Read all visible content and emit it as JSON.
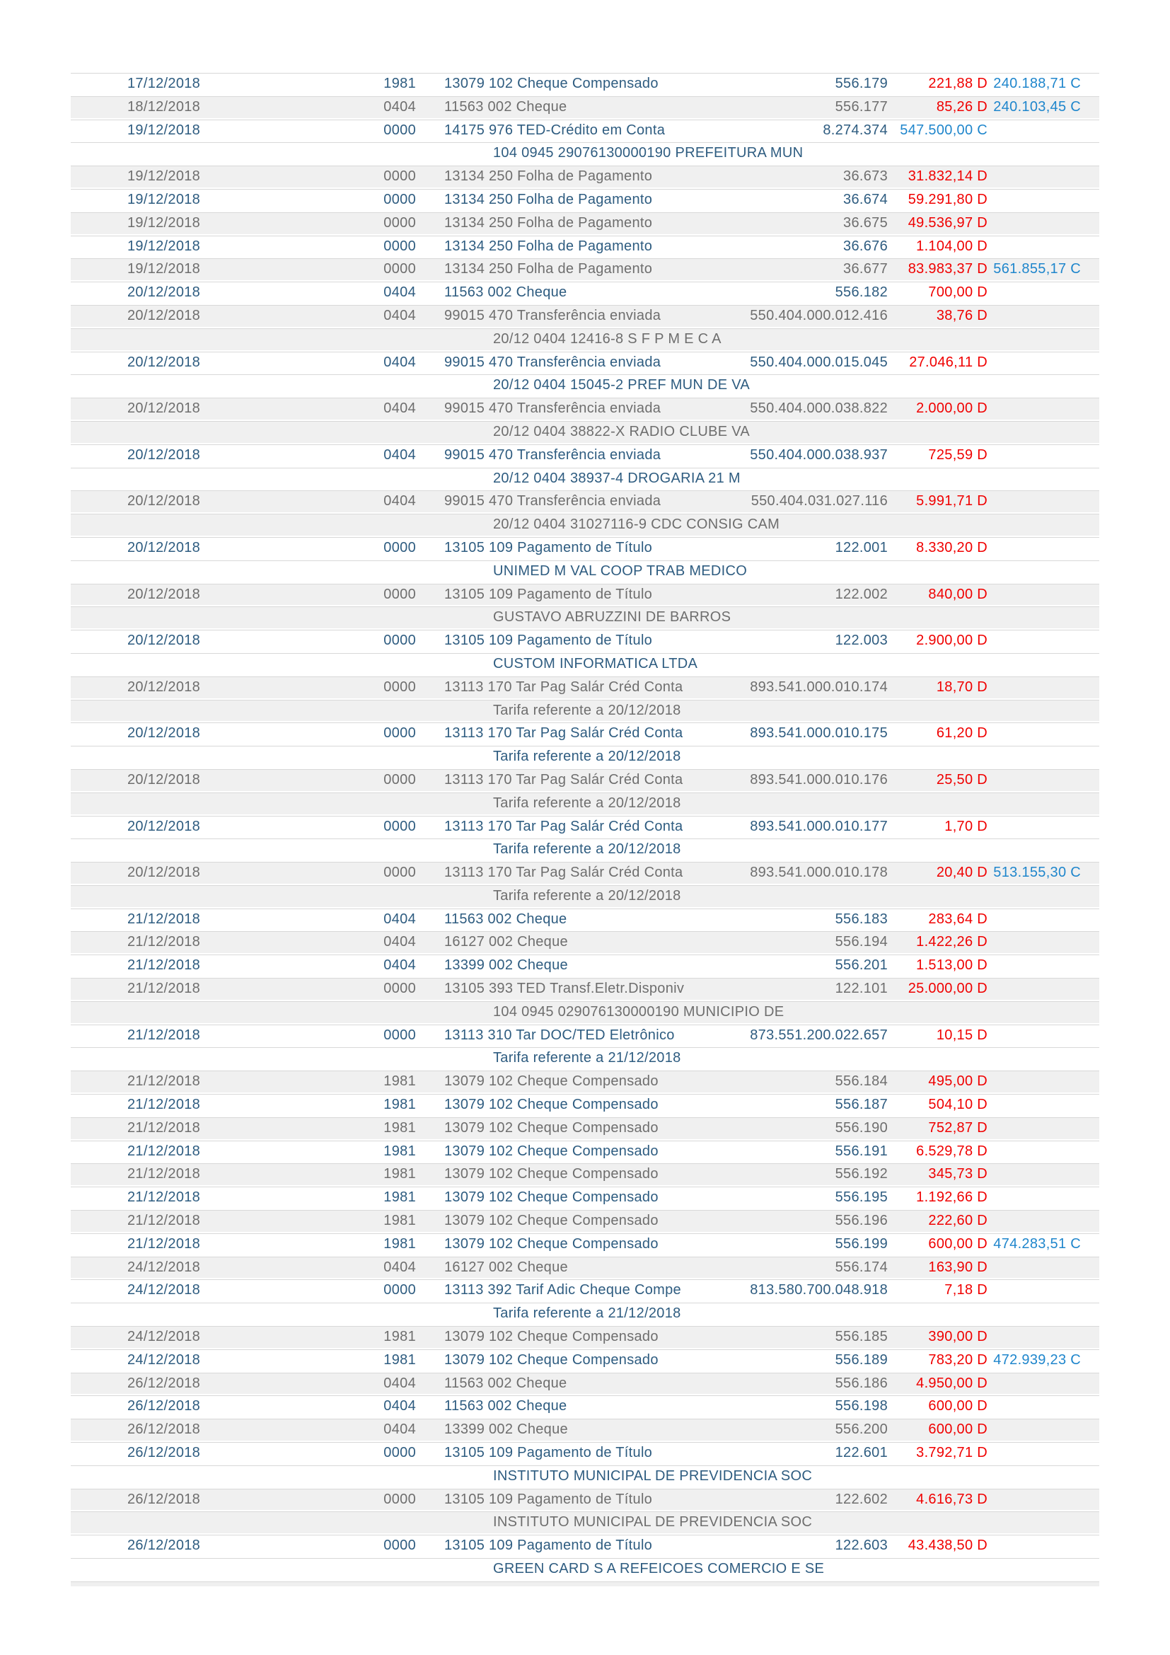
{
  "theme": {
    "navy_text_color": "#2e5c80",
    "gray_text_color": "#6e6e6e",
    "stripe_background_color": "#f0f0f0",
    "hairline_color": "#d8d8d8",
    "debit_color": "#f00000",
    "credit_color": "#1f86cc"
  },
  "statement": {
    "columns": [
      "date",
      "agency",
      "description",
      "document",
      "value",
      "balance"
    ],
    "debit_suffix": "D",
    "credit_suffix": "C",
    "transactions": [
      {
        "date": "17/12/2018",
        "agency": "1981",
        "desc": "13079 102 Cheque Compensado",
        "doc": "556.179",
        "value": "221,88 D",
        "kind": "D",
        "balance": "240.188,71 C"
      },
      {
        "date": "18/12/2018",
        "agency": "0404",
        "desc": "11563 002 Cheque",
        "doc": "556.177",
        "value": "85,26 D",
        "kind": "D",
        "balance": "240.103,45 C"
      },
      {
        "date": "19/12/2018",
        "agency": "0000",
        "desc": "14175 976 TED-Crédito em Conta",
        "doc": "8.274.374",
        "value": "547.500,00 C",
        "kind": "C",
        "sub": "104 0945 29076130000190 PREFEITURA MUN"
      },
      {
        "date": "19/12/2018",
        "agency": "0000",
        "desc": "13134 250 Folha de Pagamento",
        "doc": "36.673",
        "value": "31.832,14 D",
        "kind": "D"
      },
      {
        "date": "19/12/2018",
        "agency": "0000",
        "desc": "13134 250 Folha de Pagamento",
        "doc": "36.674",
        "value": "59.291,80 D",
        "kind": "D"
      },
      {
        "date": "19/12/2018",
        "agency": "0000",
        "desc": "13134 250 Folha de Pagamento",
        "doc": "36.675",
        "value": "49.536,97 D",
        "kind": "D"
      },
      {
        "date": "19/12/2018",
        "agency": "0000",
        "desc": "13134 250 Folha de Pagamento",
        "doc": "36.676",
        "value": "1.104,00 D",
        "kind": "D"
      },
      {
        "date": "19/12/2018",
        "agency": "0000",
        "desc": "13134 250 Folha de Pagamento",
        "doc": "36.677",
        "value": "83.983,37 D",
        "kind": "D",
        "balance": "561.855,17 C"
      },
      {
        "date": "20/12/2018",
        "agency": "0404",
        "desc": "11563 002 Cheque",
        "doc": "556.182",
        "value": "700,00 D",
        "kind": "D"
      },
      {
        "date": "20/12/2018",
        "agency": "0404",
        "desc": "99015 470 Transferência enviada",
        "doc": "550.404.000.012.416",
        "value": "38,76 D",
        "kind": "D",
        "sub": "20/12 0404 12416-8 S F P M E C A"
      },
      {
        "date": "20/12/2018",
        "agency": "0404",
        "desc": "99015 470 Transferência enviada",
        "doc": "550.404.000.015.045",
        "value": "27.046,11 D",
        "kind": "D",
        "sub": "20/12 0404 15045-2 PREF MUN DE VA"
      },
      {
        "date": "20/12/2018",
        "agency": "0404",
        "desc": "99015 470 Transferência enviada",
        "doc": "550.404.000.038.822",
        "value": "2.000,00 D",
        "kind": "D",
        "sub": "20/12 0404 38822-X RADIO CLUBE VA"
      },
      {
        "date": "20/12/2018",
        "agency": "0404",
        "desc": "99015 470 Transferência enviada",
        "doc": "550.404.000.038.937",
        "value": "725,59 D",
        "kind": "D",
        "sub": "20/12 0404 38937-4 DROGARIA 21 M"
      },
      {
        "date": "20/12/2018",
        "agency": "0404",
        "desc": "99015 470 Transferência enviada",
        "doc": "550.404.031.027.116",
        "value": "5.991,71 D",
        "kind": "D",
        "sub": "20/12 0404 31027116-9 CDC CONSIG CAM"
      },
      {
        "date": "20/12/2018",
        "agency": "0000",
        "desc": "13105 109 Pagamento de Título",
        "doc": "122.001",
        "value": "8.330,20 D",
        "kind": "D",
        "sub": "UNIMED M VAL COOP TRAB MEDICO"
      },
      {
        "date": "20/12/2018",
        "agency": "0000",
        "desc": "13105 109 Pagamento de Título",
        "doc": "122.002",
        "value": "840,00 D",
        "kind": "D",
        "sub": "GUSTAVO ABRUZZINI DE BARROS"
      },
      {
        "date": "20/12/2018",
        "agency": "0000",
        "desc": "13105 109 Pagamento de Título",
        "doc": "122.003",
        "value": "2.900,00 D",
        "kind": "D",
        "sub": "CUSTOM INFORMATICA LTDA"
      },
      {
        "date": "20/12/2018",
        "agency": "0000",
        "desc": "13113 170 Tar Pag Salár Créd Conta",
        "doc": "893.541.000.010.174",
        "value": "18,70 D",
        "kind": "D",
        "sub": "Tarifa referente a 20/12/2018"
      },
      {
        "date": "20/12/2018",
        "agency": "0000",
        "desc": "13113 170 Tar Pag Salár Créd Conta",
        "doc": "893.541.000.010.175",
        "value": "61,20 D",
        "kind": "D",
        "sub": "Tarifa referente a 20/12/2018"
      },
      {
        "date": "20/12/2018",
        "agency": "0000",
        "desc": "13113 170 Tar Pag Salár Créd Conta",
        "doc": "893.541.000.010.176",
        "value": "25,50 D",
        "kind": "D",
        "sub": "Tarifa referente a 20/12/2018"
      },
      {
        "date": "20/12/2018",
        "agency": "0000",
        "desc": "13113 170 Tar Pag Salár Créd Conta",
        "doc": "893.541.000.010.177",
        "value": "1,70 D",
        "kind": "D",
        "sub": "Tarifa referente a 20/12/2018"
      },
      {
        "date": "20/12/2018",
        "agency": "0000",
        "desc": "13113 170 Tar Pag Salár Créd Conta",
        "doc": "893.541.000.010.178",
        "value": "20,40 D",
        "kind": "D",
        "balance": "513.155,30 C",
        "sub": "Tarifa referente a 20/12/2018"
      },
      {
        "date": "21/12/2018",
        "agency": "0404",
        "desc": "11563 002 Cheque",
        "doc": "556.183",
        "value": "283,64 D",
        "kind": "D"
      },
      {
        "date": "21/12/2018",
        "agency": "0404",
        "desc": "16127 002 Cheque",
        "doc": "556.194",
        "value": "1.422,26 D",
        "kind": "D"
      },
      {
        "date": "21/12/2018",
        "agency": "0404",
        "desc": "13399 002 Cheque",
        "doc": "556.201",
        "value": "1.513,00 D",
        "kind": "D"
      },
      {
        "date": "21/12/2018",
        "agency": "0000",
        "desc": "13105 393 TED Transf.Eletr.Disponiv",
        "doc": "122.101",
        "value": "25.000,00 D",
        "kind": "D",
        "sub": "104 0945 029076130000190 MUNICIPIO DE"
      },
      {
        "date": "21/12/2018",
        "agency": "0000",
        "desc": "13113 310 Tar DOC/TED Eletrônico",
        "doc": "873.551.200.022.657",
        "value": "10,15 D",
        "kind": "D",
        "sub": "Tarifa referente a 21/12/2018"
      },
      {
        "date": "21/12/2018",
        "agency": "1981",
        "desc": "13079 102 Cheque Compensado",
        "doc": "556.184",
        "value": "495,00 D",
        "kind": "D"
      },
      {
        "date": "21/12/2018",
        "agency": "1981",
        "desc": "13079 102 Cheque Compensado",
        "doc": "556.187",
        "value": "504,10 D",
        "kind": "D"
      },
      {
        "date": "21/12/2018",
        "agency": "1981",
        "desc": "13079 102 Cheque Compensado",
        "doc": "556.190",
        "value": "752,87 D",
        "kind": "D"
      },
      {
        "date": "21/12/2018",
        "agency": "1981",
        "desc": "13079 102 Cheque Compensado",
        "doc": "556.191",
        "value": "6.529,78 D",
        "kind": "D"
      },
      {
        "date": "21/12/2018",
        "agency": "1981",
        "desc": "13079 102 Cheque Compensado",
        "doc": "556.192",
        "value": "345,73 D",
        "kind": "D"
      },
      {
        "date": "21/12/2018",
        "agency": "1981",
        "desc": "13079 102 Cheque Compensado",
        "doc": "556.195",
        "value": "1.192,66 D",
        "kind": "D"
      },
      {
        "date": "21/12/2018",
        "agency": "1981",
        "desc": "13079 102 Cheque Compensado",
        "doc": "556.196",
        "value": "222,60 D",
        "kind": "D"
      },
      {
        "date": "21/12/2018",
        "agency": "1981",
        "desc": "13079 102 Cheque Compensado",
        "doc": "556.199",
        "value": "600,00 D",
        "kind": "D",
        "balance": "474.283,51 C"
      },
      {
        "date": "24/12/2018",
        "agency": "0404",
        "desc": "16127 002 Cheque",
        "doc": "556.174",
        "value": "163,90 D",
        "kind": "D"
      },
      {
        "date": "24/12/2018",
        "agency": "0000",
        "desc": "13113 392 Tarif Adic Cheque Compe",
        "doc": "813.580.700.048.918",
        "value": "7,18 D",
        "kind": "D",
        "sub": "Tarifa referente a 21/12/2018"
      },
      {
        "date": "24/12/2018",
        "agency": "1981",
        "desc": "13079 102 Cheque Compensado",
        "doc": "556.185",
        "value": "390,00 D",
        "kind": "D"
      },
      {
        "date": "24/12/2018",
        "agency": "1981",
        "desc": "13079 102 Cheque Compensado",
        "doc": "556.189",
        "value": "783,20 D",
        "kind": "D",
        "balance": "472.939,23 C"
      },
      {
        "date": "26/12/2018",
        "agency": "0404",
        "desc": "11563 002 Cheque",
        "doc": "556.186",
        "value": "4.950,00 D",
        "kind": "D"
      },
      {
        "date": "26/12/2018",
        "agency": "0404",
        "desc": "11563 002 Cheque",
        "doc": "556.198",
        "value": "600,00 D",
        "kind": "D"
      },
      {
        "date": "26/12/2018",
        "agency": "0404",
        "desc": "13399 002 Cheque",
        "doc": "556.200",
        "value": "600,00 D",
        "kind": "D"
      },
      {
        "date": "26/12/2018",
        "agency": "0000",
        "desc": "13105 109 Pagamento de Título",
        "doc": "122.601",
        "value": "3.792,71 D",
        "kind": "D",
        "sub": "INSTITUTO MUNICIPAL DE PREVIDENCIA SOC"
      },
      {
        "date": "26/12/2018",
        "agency": "0000",
        "desc": "13105 109 Pagamento de Título",
        "doc": "122.602",
        "value": "4.616,73 D",
        "kind": "D",
        "sub": "INSTITUTO MUNICIPAL DE PREVIDENCIA SOC"
      },
      {
        "date": "26/12/2018",
        "agency": "0000",
        "desc": "13105 109 Pagamento de Título",
        "doc": "122.603",
        "value": "43.438,50 D",
        "kind": "D",
        "sub": "GREEN CARD S A REFEICOES COMERCIO E SE"
      }
    ]
  }
}
